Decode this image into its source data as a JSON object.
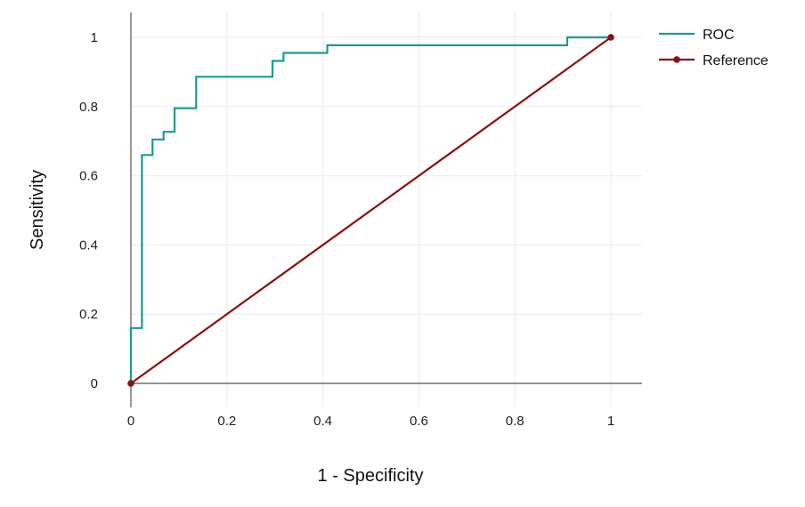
{
  "chart_data": {
    "type": "line",
    "xlabel": "1 - Specificity",
    "ylabel": "Sensitivity",
    "xlim": [
      0,
      1.065
    ],
    "ylim": [
      -0.07,
      1.07
    ],
    "x_ticks": [
      0,
      0.2,
      0.4,
      0.6,
      0.8,
      1
    ],
    "x_tick_labels": [
      "0",
      "0.2",
      "0.4",
      "0.6",
      "0.8",
      "1"
    ],
    "y_ticks": [
      0,
      0.2,
      0.4,
      0.6,
      0.8,
      1
    ],
    "y_tick_labels": [
      "0",
      "0.2",
      "0.4",
      "0.6",
      "0.8",
      "1"
    ],
    "grid": true,
    "legend_position": "top-right",
    "series": [
      {
        "name": "ROC",
        "color": "#1a9a96",
        "markers": false,
        "step": true,
        "points": [
          [
            0,
            0
          ],
          [
            0,
            0.16
          ],
          [
            0.023,
            0.16
          ],
          [
            0.023,
            0.66
          ],
          [
            0.045,
            0.66
          ],
          [
            0.045,
            0.705
          ],
          [
            0.068,
            0.705
          ],
          [
            0.068,
            0.727
          ],
          [
            0.091,
            0.727
          ],
          [
            0.091,
            0.795
          ],
          [
            0.136,
            0.795
          ],
          [
            0.136,
            0.886
          ],
          [
            0.295,
            0.886
          ],
          [
            0.295,
            0.932
          ],
          [
            0.318,
            0.932
          ],
          [
            0.318,
            0.955
          ],
          [
            0.409,
            0.955
          ],
          [
            0.409,
            0.977
          ],
          [
            0.909,
            0.977
          ],
          [
            0.909,
            1.0
          ],
          [
            1.0,
            1.0
          ]
        ]
      },
      {
        "name": "Reference",
        "color": "#8b1010",
        "markers": true,
        "step": false,
        "points": [
          [
            0,
            0
          ],
          [
            1,
            1
          ]
        ]
      }
    ]
  }
}
